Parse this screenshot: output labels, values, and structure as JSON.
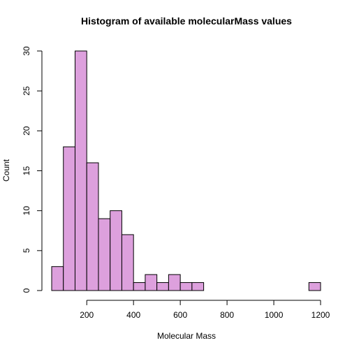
{
  "chart_data": {
    "type": "bar",
    "title": "Histogram of available molecularMass values",
    "xlabel": "Molecular Mass",
    "ylabel": "Count",
    "bin_width": 50,
    "bins": [
      {
        "x0": 50,
        "x1": 100,
        "count": 3
      },
      {
        "x0": 100,
        "x1": 150,
        "count": 18
      },
      {
        "x0": 150,
        "x1": 200,
        "count": 30
      },
      {
        "x0": 200,
        "x1": 250,
        "count": 16
      },
      {
        "x0": 250,
        "x1": 300,
        "count": 9
      },
      {
        "x0": 300,
        "x1": 350,
        "count": 10
      },
      {
        "x0": 350,
        "x1": 400,
        "count": 7
      },
      {
        "x0": 400,
        "x1": 450,
        "count": 1
      },
      {
        "x0": 450,
        "x1": 500,
        "count": 2
      },
      {
        "x0": 500,
        "x1": 550,
        "count": 1
      },
      {
        "x0": 550,
        "x1": 600,
        "count": 2
      },
      {
        "x0": 600,
        "x1": 650,
        "count": 1
      },
      {
        "x0": 650,
        "x1": 700,
        "count": 1
      },
      {
        "x0": 700,
        "x1": 750,
        "count": 0
      },
      {
        "x0": 750,
        "x1": 800,
        "count": 0
      },
      {
        "x0": 800,
        "x1": 850,
        "count": 0
      },
      {
        "x0": 850,
        "x1": 900,
        "count": 0
      },
      {
        "x0": 900,
        "x1": 950,
        "count": 0
      },
      {
        "x0": 950,
        "x1": 1000,
        "count": 0
      },
      {
        "x0": 1000,
        "x1": 1050,
        "count": 0
      },
      {
        "x0": 1050,
        "x1": 1100,
        "count": 0
      },
      {
        "x0": 1100,
        "x1": 1150,
        "count": 0
      },
      {
        "x0": 1150,
        "x1": 1200,
        "count": 1
      }
    ],
    "xlim": [
      50,
      1200
    ],
    "ylim": [
      0,
      30
    ],
    "x_ticks": [
      200,
      400,
      600,
      800,
      1000,
      1200
    ],
    "y_ticks": [
      0,
      5,
      10,
      15,
      20,
      25,
      30
    ],
    "bar_color": "#dda0dd",
    "grid": false,
    "legend": "none"
  }
}
